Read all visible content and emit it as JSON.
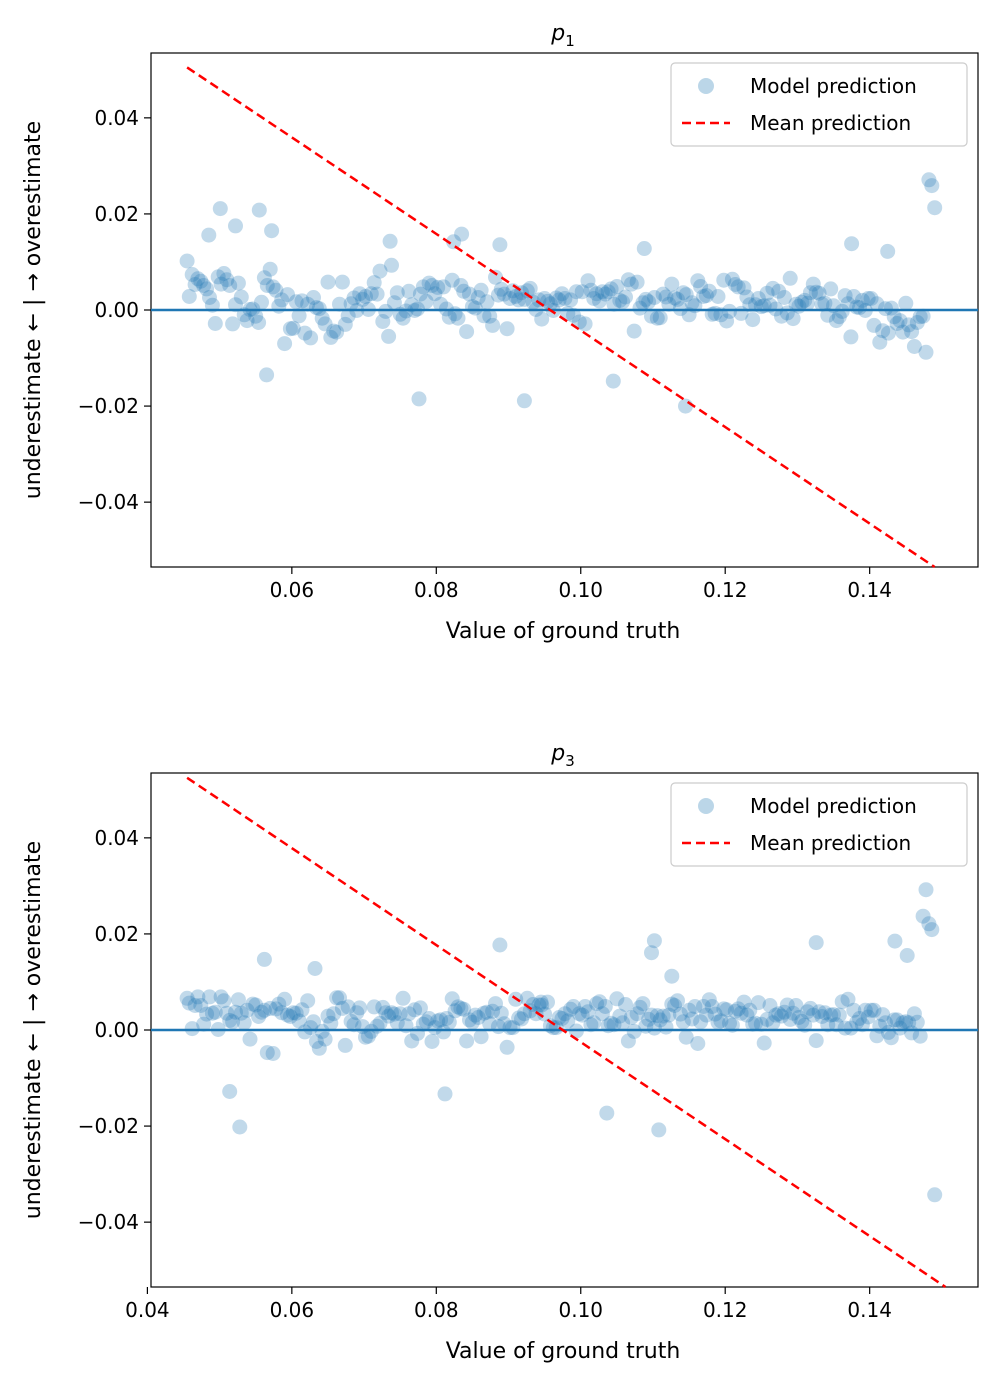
{
  "chart_data": [
    {
      "type": "scatter",
      "title_main": "p",
      "title_sub": "1",
      "xlabel": "Value of ground truth",
      "ylabel": "underestimate ← | → overestimate",
      "xlim": [
        0.0405,
        0.155
      ],
      "ylim": [
        -0.0535,
        0.0535
      ],
      "xticks": [
        0.06,
        0.08,
        0.1,
        0.12,
        0.14
      ],
      "xtick_labels": [
        "0.06",
        "0.08",
        "0.10",
        "0.12",
        "0.14"
      ],
      "yticks": [
        0.04,
        0.02,
        0.0,
        -0.02,
        -0.04
      ],
      "ytick_labels": [
        "0.04",
        "0.02",
        "0.00",
        "−0.02",
        "−0.04"
      ],
      "legend": [
        "Model prediction",
        "Mean prediction"
      ],
      "legend_position": "top-right",
      "zero_line": 0,
      "mean_line": {
        "x": [
          0.0455,
          0.149
        ],
        "y": [
          0.0505,
          -0.0535
        ]
      },
      "points_x": [
        0.0455,
        0.0458,
        0.0462,
        0.0466,
        0.047,
        0.0474,
        0.0478,
        0.0482,
        0.0486,
        0.049,
        0.0494,
        0.0498,
        0.0502,
        0.0506,
        0.051,
        0.0514,
        0.0518,
        0.0522,
        0.0526,
        0.053,
        0.0534,
        0.0538,
        0.0542,
        0.0546,
        0.055,
        0.0554,
        0.0558,
        0.0562,
        0.0566,
        0.057,
        0.0574,
        0.0578,
        0.0582,
        0.0586,
        0.059,
        0.0594,
        0.0598,
        0.0602,
        0.0606,
        0.061,
        0.0614,
        0.0618,
        0.0622,
        0.0626,
        0.063,
        0.0634,
        0.0638,
        0.0642,
        0.0646,
        0.065,
        0.0654,
        0.0658,
        0.0662,
        0.0666,
        0.067,
        0.0674,
        0.0678,
        0.0682,
        0.0686,
        0.069,
        0.0694,
        0.0698,
        0.0702,
        0.0706,
        0.071,
        0.0714,
        0.0718,
        0.0722,
        0.0726,
        0.073,
        0.0734,
        0.0738,
        0.0742,
        0.0746,
        0.075,
        0.0754,
        0.0758,
        0.0762,
        0.0766,
        0.077,
        0.0774,
        0.0778,
        0.0782,
        0.0786,
        0.079,
        0.0794,
        0.0798,
        0.0802,
        0.0806,
        0.081,
        0.0814,
        0.0818,
        0.0822,
        0.0826,
        0.083,
        0.0834,
        0.0838,
        0.0842,
        0.0846,
        0.085,
        0.0854,
        0.0858,
        0.0862,
        0.0866,
        0.087,
        0.0874,
        0.0878,
        0.0882,
        0.0886,
        0.089,
        0.0894,
        0.0898,
        0.0902,
        0.0906,
        0.091,
        0.0914,
        0.0918,
        0.0922,
        0.0926,
        0.093,
        0.0934,
        0.0938,
        0.0942,
        0.0946,
        0.095,
        0.0954,
        0.0958,
        0.0962,
        0.0966,
        0.097,
        0.0974,
        0.0978,
        0.0982,
        0.0986,
        0.099,
        0.0994,
        0.0998,
        0.1002,
        0.1006,
        0.101,
        0.1014,
        0.1018,
        0.1022,
        0.1026,
        0.103,
        0.1034,
        0.1038,
        0.1042,
        0.1046,
        0.105,
        0.1054,
        0.1058,
        0.1062,
        0.1066,
        0.107,
        0.1074,
        0.1078,
        0.1082,
        0.1086,
        0.109,
        0.1094,
        0.1098,
        0.1102,
        0.1106,
        0.111,
        0.1114,
        0.1118,
        0.1122,
        0.1126,
        0.113,
        0.1134,
        0.1138,
        0.1142,
        0.1146,
        0.115,
        0.1154,
        0.1158,
        0.1162,
        0.1166,
        0.117,
        0.1174,
        0.1178,
        0.1182,
        0.1186,
        0.119,
        0.1194,
        0.1198,
        0.1202,
        0.1206,
        0.121,
        0.1214,
        0.1218,
        0.1222,
        0.1226,
        0.123,
        0.1234,
        0.1238,
        0.1242,
        0.1246,
        0.125,
        0.1254,
        0.1258,
        0.1262,
        0.1266,
        0.127,
        0.1274,
        0.1278,
        0.1282,
        0.1286,
        0.129,
        0.1294,
        0.1298,
        0.1302,
        0.1306,
        0.131,
        0.1314,
        0.1318,
        0.1322,
        0.1326,
        0.133,
        0.1334,
        0.1338,
        0.1342,
        0.1346,
        0.135,
        0.1354,
        0.1358,
        0.1362,
        0.1366,
        0.137,
        0.1374,
        0.1378,
        0.1382,
        0.1386,
        0.139,
        0.1394,
        0.1398,
        0.1402,
        0.1406,
        0.141,
        0.1414,
        0.1418,
        0.1422,
        0.1426,
        0.143,
        0.1434,
        0.1438,
        0.1442,
        0.1446,
        0.145,
        0.1454,
        0.1458,
        0.1462,
        0.1466,
        0.147,
        0.1474,
        0.1478,
        0.1482,
        0.1486,
        0.149,
        0.0501,
        0.0522,
        0.0572,
        0.0736,
        0.0824,
        0.0485,
        0.0555,
        0.0565,
        0.0776,
        0.1045,
        0.1145,
        0.1375,
        0.1425,
        0.0835,
        0.0888,
        0.0922,
        0.1088,
        0.1215,
        0.1385,
        0.1135
      ],
      "points_y": [
        0.0102,
        0.0028,
        0.0074,
        0.0053,
        0.0065,
        0.006,
        0.0051,
        0.0044,
        0.0026,
        0.001,
        -0.0028,
        0.0069,
        0.0054,
        0.0076,
        0.0063,
        0.0051,
        -0.0029,
        0.0011,
        0.0056,
        0.0027,
        -0.001,
        -0.0022,
        0.0001,
        0.0002,
        -0.0013,
        -0.0026,
        0.0016,
        0.0067,
        0.0051,
        0.0085,
        0.0048,
        0.0041,
        0.0008,
        0.0021,
        -0.007,
        0.0032,
        -0.0039,
        -0.0038,
        0.0017,
        -0.0012,
        0.0019,
        -0.0048,
        0.0012,
        -0.0058,
        0.0026,
        0.0005,
        0.0003,
        -0.0017,
        -0.0029,
        0.0058,
        -0.0057,
        -0.0044,
        -0.0046,
        0.0012,
        0.0058,
        -0.003,
        -0.0012,
        0.0013,
        0.0025,
        -0.0001,
        0.0034,
        0.0022,
        0.0028,
        0.0001,
        0.0034,
        0.0057,
        0.0033,
        0.0081,
        -0.0024,
        -0.0003,
        -0.0055,
        0.0093,
        0.0015,
        0.0036,
        -0.0009,
        -0.0017,
        -0.0002,
        0.0039,
        0.0011,
        -0.0001,
        0.0002,
        0.0033,
        0.0048,
        0.0018,
        0.0056,
        0.0051,
        0.0034,
        0.0047,
        0.0012,
        0.0048,
        0.0002,
        -0.0015,
        0.0062,
        -0.0008,
        -0.0017,
        0.0051,
        0.0039,
        -0.0045,
        0.0033,
        0.0007,
        0.0004,
        0.0026,
        0.0041,
        -0.0012,
        0.0017,
        -0.0013,
        -0.0032,
        0.0068,
        0.0031,
        0.0043,
        0.0033,
        -0.0039,
        0.0024,
        0.004,
        0.0028,
        0.0021,
        0.0036,
        0.0022,
        0.004,
        0.0045,
        0.0016,
        0.0001,
        0.0021,
        -0.0019,
        0.0024,
        0.0018,
        0.0013,
        -0.0001,
        0.0025,
        0.0021,
        0.0034,
        0.0024,
        -0.0007,
        0.0021,
        -0.0011,
        0.0038,
        -0.0025,
        0.0038,
        -0.0029,
        0.0061,
        0.0041,
        0.0024,
        0.0034,
        0.0019,
        0.0038,
        0.0033,
        0.0038,
        0.0044,
        0.0012,
        0.0049,
        0.002,
        0.0017,
        0.0027,
        0.0063,
        0.0054,
        -0.0044,
        0.0058,
        0.0004,
        0.0015,
        0.0022,
        0.0017,
        -0.0013,
        0.0026,
        -0.0017,
        -0.0016,
        0.0033,
        0.0027,
        0.0012,
        0.0054,
        0.0025,
        0.0022,
        0.0003,
        0.0036,
        0.0032,
        -0.001,
        0.0015,
        0.0009,
        0.0061,
        0.0049,
        0.0028,
        0.003,
        0.0039,
        -0.0009,
        -0.0007,
        0.0028,
        -0.001,
        0.0062,
        -0.0023,
        -0.0003,
        0.0064,
        0.0053,
        0.0048,
        -0.0007,
        0.0046,
        0.0027,
        0.0011,
        -0.002,
        0.0011,
        0.0024,
        0.0007,
        0.0009,
        0.0035,
        0.001,
        0.0045,
        0.0002,
        0.0039,
        -0.0013,
        0.0026,
        -0.0006,
        0.0066,
        -0.0018,
        0.0012,
        0.0008,
        0.0016,
        0.002,
        0.0014,
        0.0036,
        0.0054,
        0.0037,
        0.0035,
        0.0012,
        0.0014,
        -0.0011,
        0.0044,
        0.0009,
        -0.0022,
        -0.0014,
        -0.0003,
        0.003,
        0.0013,
        -0.0056,
        0.0028,
        0.0006,
        0.0005,
        0.002,
        -0.0001,
        0.0024,
        0.0024,
        -0.0032,
        0.0013,
        -0.0067,
        -0.0043,
        0.0003,
        -0.0048,
        0.0004,
        -0.0014,
        -0.0028,
        -0.0022,
        -0.0046,
        0.0014,
        -0.0031,
        -0.0045,
        -0.0076,
        -0.0026,
        -0.0014,
        -0.0013,
        -0.0088,
        0.0271,
        0.0259,
        0.0213,
        0.0211,
        0.0175,
        0.0165,
        0.0143,
        0.0142,
        0.0156,
        0.0208,
        -0.0135,
        -0.0185,
        -0.0148,
        -0.02,
        0.0138,
        0.0122,
        0.0158,
        0.0136,
        -0.0189,
        0.0128
      ]
    },
    {
      "type": "scatter",
      "title_main": "p",
      "title_sub": "3",
      "xlabel": "Value of ground truth",
      "ylabel": "underestimate ← | → overestimate",
      "xlim": [
        0.0405,
        0.155
      ],
      "ylim": [
        -0.0535,
        0.0535
      ],
      "xticks": [
        0.04,
        0.06,
        0.08,
        0.1,
        0.12,
        0.14
      ],
      "xtick_labels": [
        "0.04",
        "0.06",
        "0.08",
        "0.10",
        "0.12",
        "0.14"
      ],
      "yticks": [
        0.04,
        0.02,
        0.0,
        -0.02,
        -0.04
      ],
      "ytick_labels": [
        "0.04",
        "0.02",
        "0.00",
        "−0.02",
        "−0.04"
      ],
      "legend": [
        "Model prediction",
        "Mean prediction"
      ],
      "legend_position": "top-right",
      "zero_line": 0,
      "mean_line": {
        "x": [
          0.0455,
          0.1505
        ],
        "y": [
          0.0525,
          -0.0535
        ]
      },
      "points_x": [
        0.0455,
        0.0458,
        0.0462,
        0.0466,
        0.047,
        0.0474,
        0.0478,
        0.0482,
        0.0486,
        0.049,
        0.0494,
        0.0498,
        0.0502,
        0.0506,
        0.051,
        0.0514,
        0.0518,
        0.0522,
        0.0526,
        0.053,
        0.0534,
        0.0538,
        0.0542,
        0.0546,
        0.055,
        0.0554,
        0.0558,
        0.0562,
        0.0566,
        0.057,
        0.0574,
        0.0578,
        0.0582,
        0.0586,
        0.059,
        0.0594,
        0.0598,
        0.0602,
        0.0606,
        0.061,
        0.0614,
        0.0618,
        0.0622,
        0.0626,
        0.063,
        0.0634,
        0.0638,
        0.0642,
        0.0646,
        0.065,
        0.0654,
        0.0658,
        0.0662,
        0.0666,
        0.067,
        0.0674,
        0.0678,
        0.0682,
        0.0686,
        0.069,
        0.0694,
        0.0698,
        0.0702,
        0.0706,
        0.071,
        0.0714,
        0.0718,
        0.0722,
        0.0726,
        0.073,
        0.0734,
        0.0738,
        0.0742,
        0.0746,
        0.075,
        0.0754,
        0.0758,
        0.0762,
        0.0766,
        0.077,
        0.0774,
        0.0778,
        0.0782,
        0.0786,
        0.079,
        0.0794,
        0.0798,
        0.0802,
        0.0806,
        0.081,
        0.0814,
        0.0818,
        0.0822,
        0.0826,
        0.083,
        0.0834,
        0.0838,
        0.0842,
        0.0846,
        0.085,
        0.0854,
        0.0858,
        0.0862,
        0.0866,
        0.087,
        0.0874,
        0.0878,
        0.0882,
        0.0886,
        0.089,
        0.0894,
        0.0898,
        0.0902,
        0.0906,
        0.091,
        0.0914,
        0.0918,
        0.0922,
        0.0926,
        0.093,
        0.0934,
        0.0938,
        0.0942,
        0.0946,
        0.095,
        0.0954,
        0.0958,
        0.0962,
        0.0966,
        0.097,
        0.0974,
        0.0978,
        0.0982,
        0.0986,
        0.099,
        0.0994,
        0.0998,
        0.1002,
        0.1006,
        0.101,
        0.1014,
        0.1018,
        0.1022,
        0.1026,
        0.103,
        0.1034,
        0.1038,
        0.1042,
        0.1046,
        0.105,
        0.1054,
        0.1058,
        0.1062,
        0.1066,
        0.107,
        0.1074,
        0.1078,
        0.1082,
        0.1086,
        0.109,
        0.1094,
        0.1098,
        0.1102,
        0.1106,
        0.111,
        0.1114,
        0.1118,
        0.1122,
        0.1126,
        0.113,
        0.1134,
        0.1138,
        0.1142,
        0.1146,
        0.115,
        0.1154,
        0.1158,
        0.1162,
        0.1166,
        0.117,
        0.1174,
        0.1178,
        0.1182,
        0.1186,
        0.119,
        0.1194,
        0.1198,
        0.1202,
        0.1206,
        0.121,
        0.1214,
        0.1218,
        0.1222,
        0.1226,
        0.123,
        0.1234,
        0.1238,
        0.1242,
        0.1246,
        0.125,
        0.1254,
        0.1258,
        0.1262,
        0.1266,
        0.127,
        0.1274,
        0.1278,
        0.1282,
        0.1286,
        0.129,
        0.1294,
        0.1298,
        0.1302,
        0.1306,
        0.131,
        0.1314,
        0.1318,
        0.1322,
        0.1326,
        0.133,
        0.1334,
        0.1338,
        0.1342,
        0.1346,
        0.135,
        0.1354,
        0.1358,
        0.1362,
        0.1366,
        0.137,
        0.1374,
        0.1378,
        0.1382,
        0.1386,
        0.139,
        0.1394,
        0.1398,
        0.1402,
        0.1406,
        0.141,
        0.1414,
        0.1418,
        0.1422,
        0.1426,
        0.143,
        0.1434,
        0.1438,
        0.1442,
        0.1446,
        0.145,
        0.1454,
        0.1458,
        0.1462,
        0.1466,
        0.147,
        0.1474,
        0.1478,
        0.1482,
        0.1486,
        0.149,
        0.0528,
        0.1036,
        0.1108,
        0.1102,
        0.1435,
        0.1452,
        0.1326,
        0.1098,
        0.0562,
        0.0812,
        0.0632,
        0.0888,
        0.1126,
        0.0514,
        0.0945,
        0.0482,
        0.0922,
        0.1165,
        0.1485,
        0.1412
      ],
      "points_y": [
        0.0066,
        0.0056,
        0.0003,
        0.0051,
        0.0069,
        0.0051,
        0.0012,
        0.0033,
        0.0069,
        0.0035,
        0.0037,
        0.0001,
        0.0069,
        0.0061,
        0.0035,
        0.002,
        0.0017,
        0.0037,
        0.0063,
        0.0035,
        0.0015,
        0.0041,
        -0.0019,
        0.0054,
        0.0052,
        0.0028,
        0.0037,
        0.0041,
        -0.0047,
        0.0045,
        -0.0049,
        0.0044,
        0.0054,
        0.0036,
        0.0064,
        0.0031,
        0.0028,
        0.0036,
        0.0035,
        0.0019,
        0.0042,
        -0.0004,
        0.0061,
        0.0005,
        0.0017,
        -0.0024,
        -0.0038,
        -0.0003,
        -0.0019,
        0.0029,
        0.0014,
        0.0034,
        0.0067,
        0.0067,
        0.0045,
        -0.0032,
        0.0048,
        0.0018,
        0.0011,
        0.0036,
        0.0046,
        0.0007,
        -0.0015,
        -0.0013,
        -0.0003,
        0.0048,
        0.0008,
        0.0014,
        0.0047,
        0.0036,
        0.0029,
        0.0036,
        0.0033,
        0.0015,
        0.0034,
        0.0066,
        0.0009,
        0.0034,
        -0.0023,
        0.0042,
        -0.0007,
        0.0046,
        0.0012,
        0.0017,
        0.0024,
        -0.0024,
        0.0005,
        0.0019,
        0.0021,
        -0.0004,
        0.0024,
        0.0016,
        0.0065,
        0.004,
        0.0048,
        0.0045,
        0.0043,
        -0.0023,
        0.0021,
        0.0016,
        0.0031,
        0.0026,
        -0.0014,
        0.0035,
        0.0037,
        0.0013,
        0.0039,
        0.0055,
        0.0007,
        0.0035,
        0.0013,
        -0.0036,
        0.0005,
        0.0005,
        0.0064,
        0.0025,
        0.0023,
        0.0034,
        0.0066,
        0.004,
        0.0053,
        0.0034,
        0.0052,
        0.0052,
        0.0033,
        0.0058,
        0.0009,
        0.0005,
        0.0005,
        0.0026,
        0.0024,
        0.0034,
        0.0019,
        0.0043,
        0.0049,
        -0.0002,
        0.0034,
        0.0031,
        0.0049,
        0.0038,
        0.0011,
        0.0015,
        0.0055,
        0.0059,
        0.0034,
        0.0049,
        0.0009,
        0.0014,
        0.0011,
        0.0065,
        0.0029,
        0.0015,
        0.0053,
        -0.0023,
        0.0026,
        -0.0003,
        0.0034,
        0.0047,
        0.0055,
        0.0008,
        0.0022,
        0.0031,
        0.0004,
        0.003,
        0.0021,
        0.0029,
        0.0006,
        0.0031,
        0.0054,
        0.0051,
        0.0061,
        0.0033,
        0.0017,
        -0.0015,
        0.0041,
        0.0023,
        0.0049,
        -0.0028,
        0.0017,
        0.0049,
        0.0031,
        0.0063,
        0.0049,
        0.0033,
        0.0016,
        0.0019,
        0.0044,
        0.0042,
        0.0014,
        0.001,
        0.0039,
        0.0044,
        0.0035,
        0.0058,
        0.0031,
        0.0041,
        0.0012,
        0.0014,
        0.0057,
        0.0012,
        -0.0027,
        0.0022,
        0.0051,
        0.0015,
        0.0031,
        0.0034,
        0.0029,
        0.0037,
        0.0052,
        0.0022,
        0.0035,
        0.0051,
        0.0026,
        0.0018,
        0.001,
        0.0038,
        0.0045,
        0.0031,
        -0.0022,
        0.0038,
        0.0028,
        0.0036,
        0.0011,
        0.0031,
        0.0032,
        0.0011,
        0.0031,
        0.0059,
        0.0004,
        0.0064,
        0.0004,
        0.0041,
        0.0016,
        0.0024,
        0.0011,
        0.0041,
        0.0027,
        0.0041,
        0.0041,
        -0.0012,
        0.0008,
        0.0032,
        0.0015,
        -0.0005,
        -0.0016,
        0.0021,
        0.0021,
        0.0004,
        0.0015,
        0.0017,
        0.0015,
        -0.0006,
        0.0034,
        0.0016,
        -0.0013,
        0.0237,
        0.0292,
        0.0221,
        0.0209,
        -0.0343,
        -0.0202,
        -0.0173,
        -0.0208,
        0.0186,
        0.0185,
        0.0155,
        0.0182,
        0.0161,
        0.0147,
        -0.0133,
        0.0128,
        0.0177,
        0.0112,
        -0.0128,
        0.0058
      ]
    }
  ]
}
